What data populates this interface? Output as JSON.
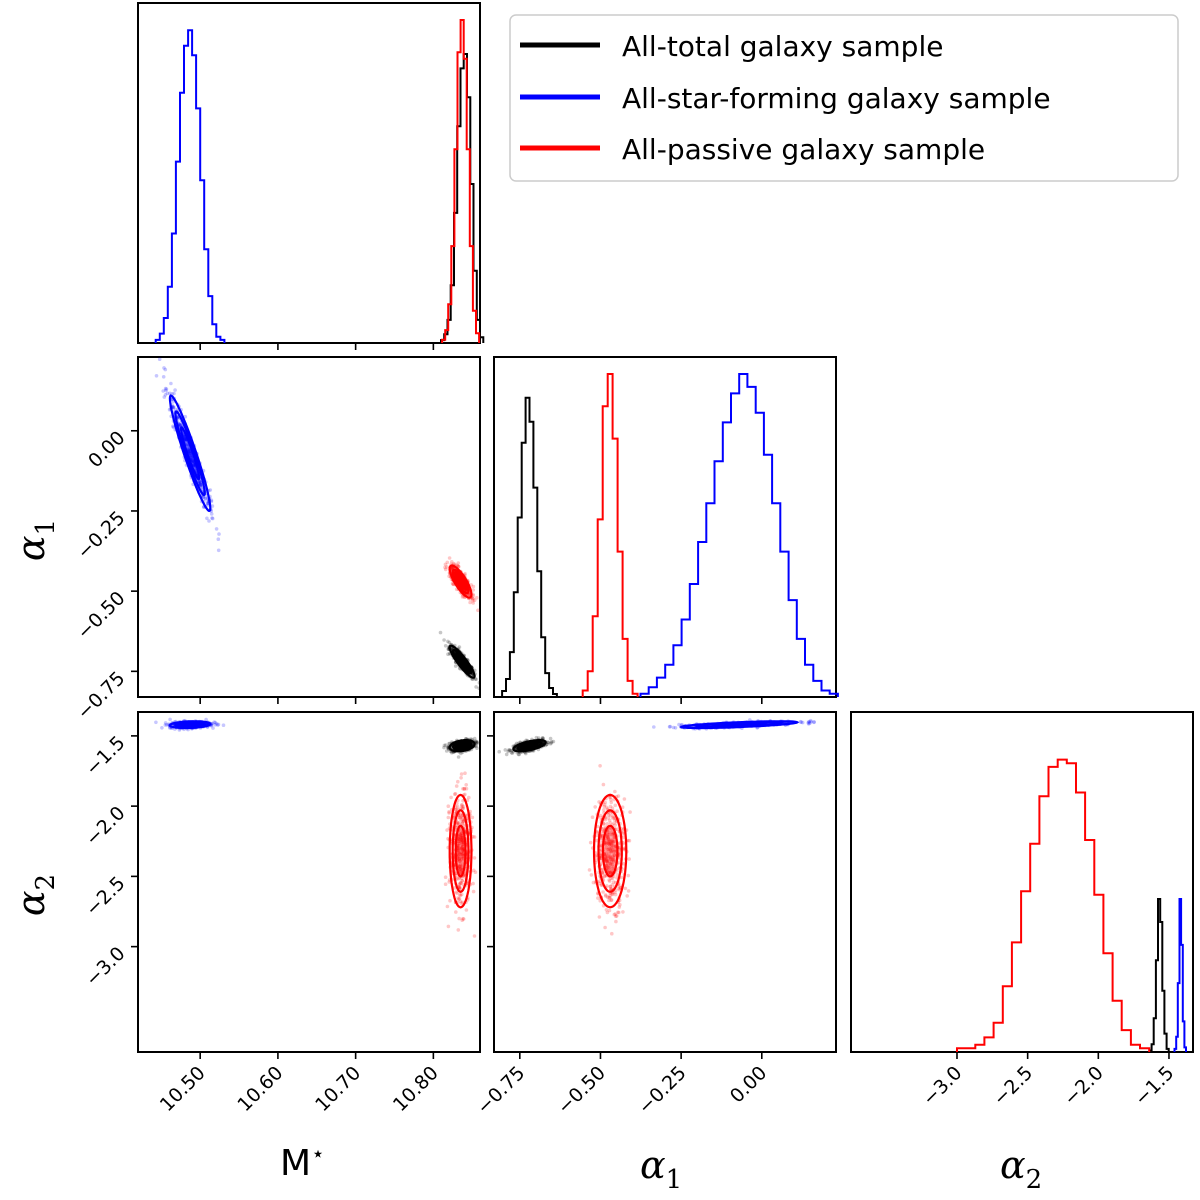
{
  "chart_data": {
    "type": "corner",
    "title": "",
    "parameters": [
      "M*",
      "α1",
      "α2"
    ],
    "axis_labels": {
      "mstar": "M",
      "mstar_sup": "⋆",
      "alpha": "α",
      "sub1": "1",
      "sub2": "2"
    },
    "ranges": {
      "mstar": [
        10.42,
        10.86
      ],
      "alpha1": [
        -0.83,
        0.23
      ],
      "alpha2": [
        -3.75,
        -1.33
      ]
    },
    "ticks": {
      "mstar": [
        {
          "value": 10.5,
          "label": "10.50"
        },
        {
          "value": 10.6,
          "label": "10.60"
        },
        {
          "value": 10.7,
          "label": "10.70"
        },
        {
          "value": 10.8,
          "label": "10.80"
        }
      ],
      "alpha1": [
        {
          "value": -0.75,
          "label": "−0.75"
        },
        {
          "value": -0.5,
          "label": "−0.50"
        },
        {
          "value": -0.25,
          "label": "−0.25"
        },
        {
          "value": 0.0,
          "label": "0.00"
        }
      ],
      "alpha2_y": [
        {
          "value": -1.5,
          "label": "−1.5"
        },
        {
          "value": -2.0,
          "label": "−2.0"
        },
        {
          "value": -2.5,
          "label": "−2.5"
        },
        {
          "value": -3.0,
          "label": "−3.0"
        }
      ],
      "alpha2_x": [
        {
          "value": -3.0,
          "label": "−3.0"
        },
        {
          "value": -2.5,
          "label": "−2.5"
        },
        {
          "value": -2.0,
          "label": "−2.0"
        },
        {
          "value": -1.5,
          "label": "−1.5"
        }
      ]
    },
    "legend": {
      "position": "top-right"
    },
    "series": [
      {
        "key": "total",
        "name": "All-total galaxy sample",
        "color": "#000000",
        "mstar": {
          "mean": 10.837,
          "sd": 0.008
        },
        "alpha1": {
          "mean": -0.72,
          "sd": 0.025
        },
        "alpha2": {
          "mean": -1.57,
          "sd": 0.02
        },
        "corr": {
          "alpha1_mstar": -0.9,
          "alpha2_mstar": 0.3,
          "alpha2_alpha1": 0.6
        },
        "hist_mstar": [
          1,
          3,
          8,
          20,
          45,
          75,
          95,
          100,
          85,
          55,
          25,
          8,
          2
        ],
        "hist_alpha1": [
          2,
          6,
          15,
          35,
          60,
          85,
          100,
          92,
          70,
          42,
          20,
          8,
          3,
          1
        ],
        "hist_alpha2": [
          1,
          5,
          22,
          60,
          100,
          85,
          40,
          12,
          2
        ],
        "hist_mstar_peak": 0.85,
        "hist_alpha1_peak": 0.88,
        "hist_alpha2_peak": 0.45
      },
      {
        "key": "sf",
        "name": "All-star-forming galaxy sample",
        "color": "#0000ff",
        "mstar": {
          "mean": 10.487,
          "sd": 0.013
        },
        "alpha1": {
          "mean": -0.07,
          "sd": 0.09
        },
        "alpha2": {
          "mean": -1.42,
          "sd": 0.012
        },
        "corr": {
          "alpha1_mstar": -0.95,
          "alpha2_mstar": 0.2,
          "alpha2_alpha1": 0.7
        },
        "hist_mstar": [
          1,
          3,
          8,
          18,
          35,
          58,
          80,
          95,
          100,
          92,
          75,
          52,
          30,
          15,
          6,
          2,
          1
        ],
        "hist_alpha1": [
          1,
          3,
          6,
          10,
          16,
          24,
          35,
          48,
          60,
          73,
          85,
          94,
          100,
          96,
          88,
          75,
          60,
          45,
          30,
          18,
          10,
          5,
          2,
          1
        ],
        "hist_alpha2": [
          2,
          10,
          45,
          100,
          70,
          20,
          3
        ],
        "hist_mstar_peak": 0.92,
        "hist_alpha1_peak": 0.95,
        "hist_alpha2_peak": 0.45
      },
      {
        "key": "passive",
        "name": "All-passive galaxy sample",
        "color": "#ff0000",
        "mstar": {
          "mean": 10.835,
          "sd": 0.007
        },
        "alpha1": {
          "mean": -0.47,
          "sd": 0.025
        },
        "alpha2": {
          "mean": -2.32,
          "sd": 0.2
        },
        "corr": {
          "alpha1_mstar": -0.8,
          "alpha2_mstar": 0.0,
          "alpha2_alpha1": 0.0
        },
        "hist_mstar": [
          1,
          4,
          12,
          30,
          60,
          90,
          100,
          88,
          60,
          30,
          10,
          3
        ],
        "hist_alpha1": [
          2,
          8,
          25,
          55,
          90,
          100,
          80,
          45,
          18,
          5,
          1
        ],
        "hist_alpha2": [
          1,
          1,
          2,
          4,
          8,
          18,
          30,
          44,
          57,
          70,
          78,
          80,
          79,
          71,
          58,
          43,
          27,
          14,
          6,
          2,
          1
        ],
        "hist_mstar_peak": 0.95,
        "hist_alpha1_peak": 0.95,
        "hist_alpha2_peak": 0.86
      }
    ]
  }
}
